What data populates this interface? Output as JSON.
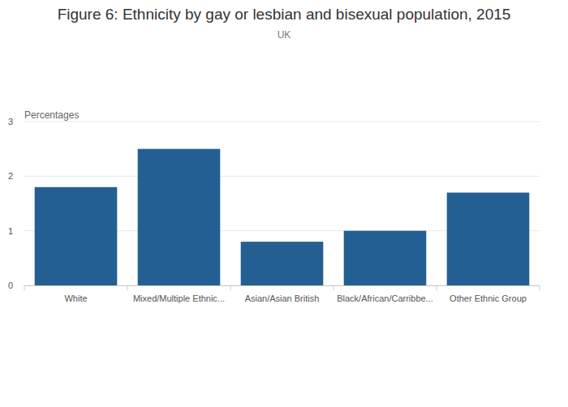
{
  "chart_data": {
    "type": "bar",
    "title": "Figure 6: Ethnicity by gay or lesbian and bisexual population, 2015",
    "subtitle": "UK",
    "ylabel": "Percentages",
    "categories": [
      "White",
      "Mixed/Multiple Ethnic...",
      "Asian/Asian British",
      "Black/African/Carribbe...",
      "Other Ethnic Group"
    ],
    "values": [
      1.8,
      2.5,
      0.8,
      1.0,
      1.7
    ],
    "color": "#235f92",
    "ylim": [
      0,
      3
    ],
    "yticks": [
      0,
      1,
      2,
      3
    ],
    "grid": true
  }
}
